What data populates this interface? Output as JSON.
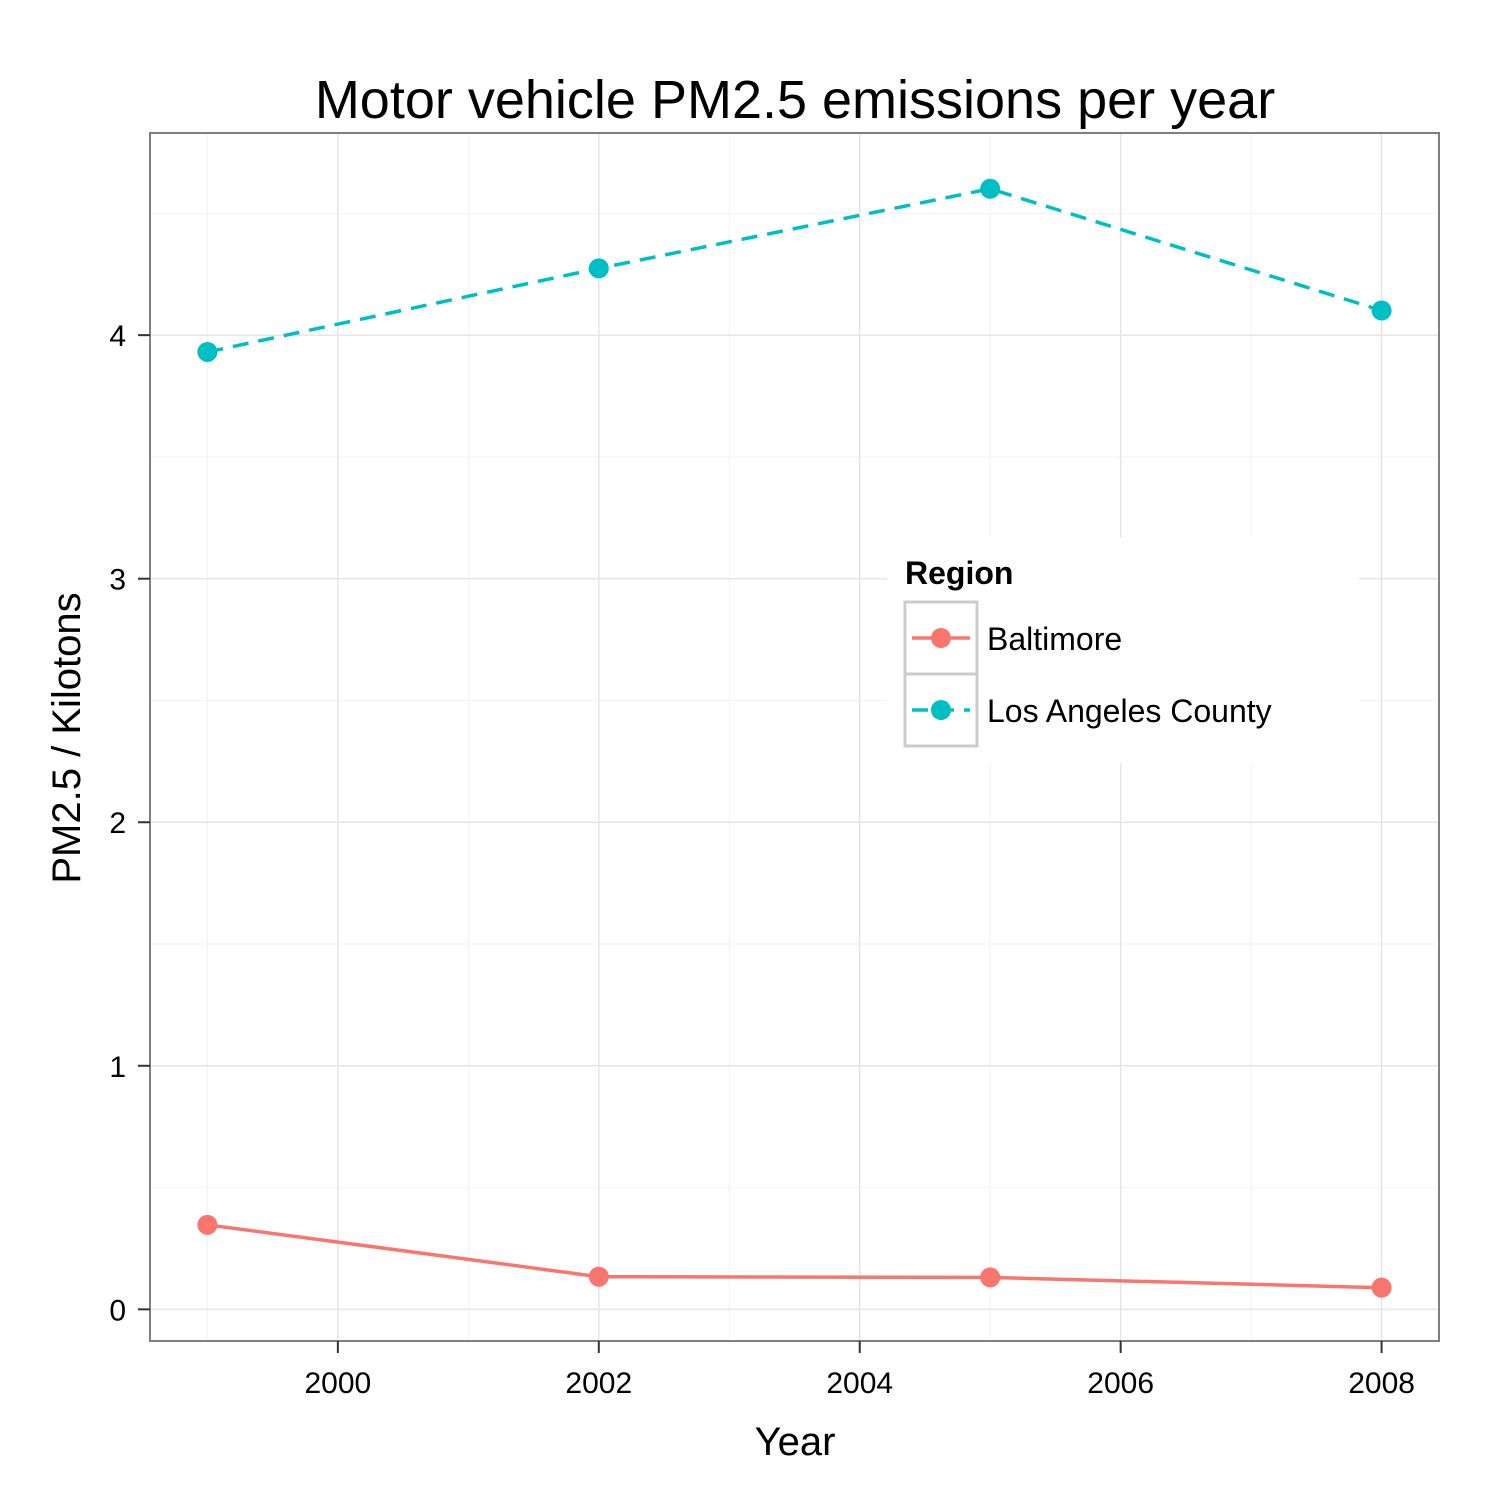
{
  "chart_data": {
    "type": "line",
    "title": "Motor vehicle PM2.5 emissions per year",
    "xlabel": "Year",
    "ylabel": "PM2.5 / Kilotons",
    "x": [
      1999,
      2002,
      2005,
      2008
    ],
    "xlim": [
      1998.56,
      2008.44
    ],
    "ylim": [
      -0.13,
      4.83
    ],
    "xticks": [
      2000,
      2002,
      2004,
      2006,
      2008
    ],
    "xtick_labels": [
      "2000",
      "2002",
      "2004",
      "2006",
      "2008"
    ],
    "yticks": [
      0,
      1,
      2,
      3,
      4
    ],
    "ytick_labels": [
      "0",
      "1",
      "2",
      "3",
      "4"
    ],
    "grid": true,
    "legend": {
      "title": "Region",
      "position": "right-center inside plot"
    },
    "series": [
      {
        "name": "Baltimore",
        "color": "#F8766D",
        "line_style": "solid",
        "values": [
          0.347,
          0.134,
          0.131,
          0.089
        ]
      },
      {
        "name": "Los Angeles County",
        "color": "#00BFC4",
        "line_style": "dashed",
        "values": [
          3.931,
          4.274,
          4.601,
          4.101
        ]
      }
    ]
  }
}
